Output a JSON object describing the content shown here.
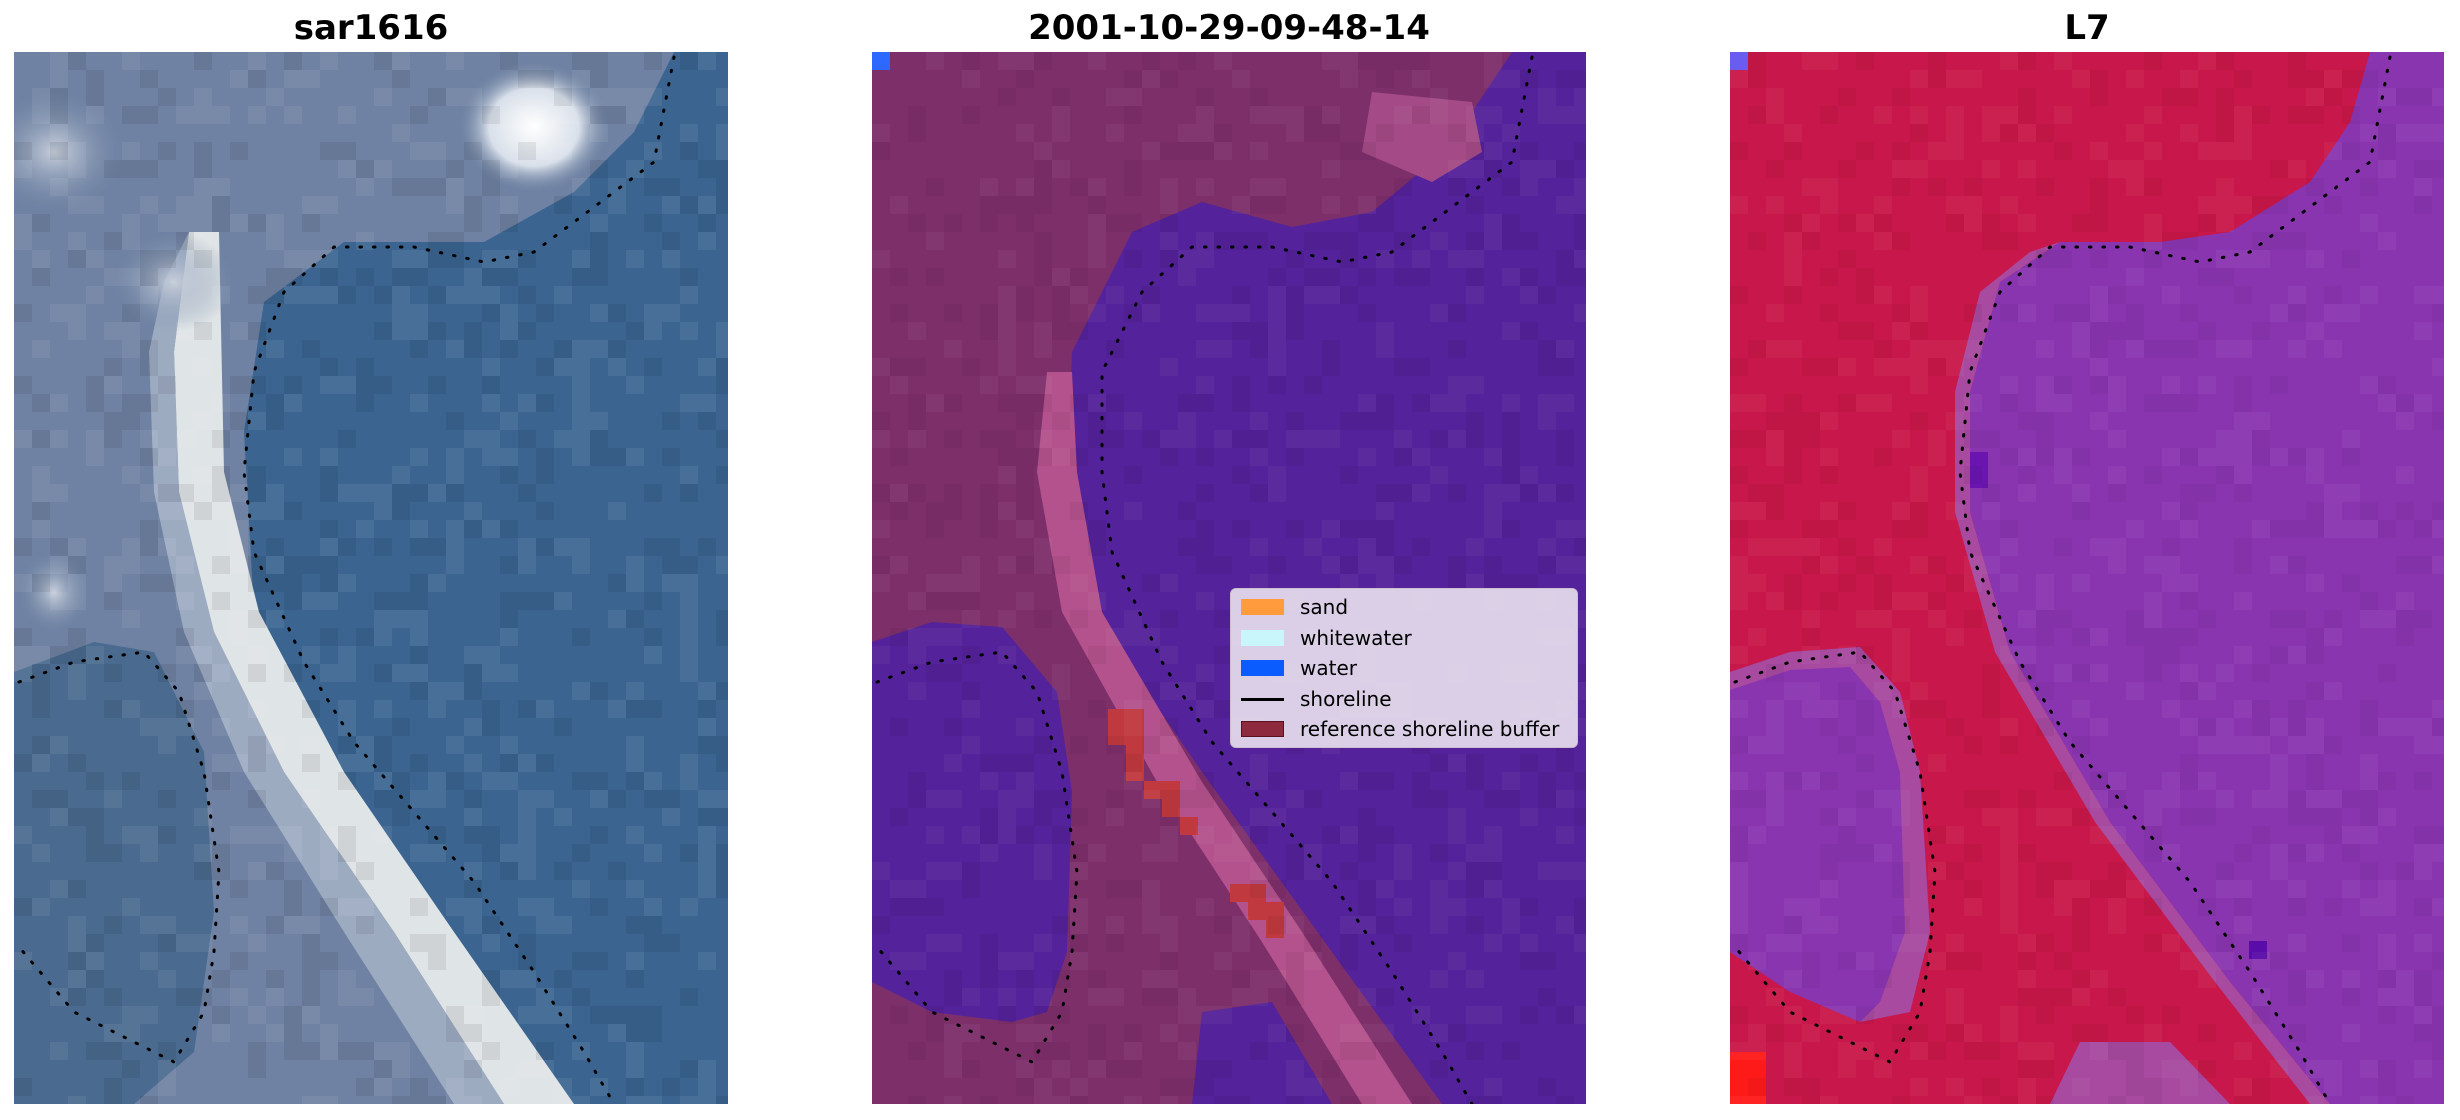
{
  "panels": [
    {
      "title": "sar1616"
    },
    {
      "title": "2001-10-29-09-48-14"
    },
    {
      "title": "L7"
    }
  ],
  "legend": {
    "items": [
      {
        "label": "sand",
        "color": "#ff9a3d",
        "kind": "patch"
      },
      {
        "label": "whitewater",
        "color": "#c8f6fb",
        "kind": "patch"
      },
      {
        "label": "water",
        "color": "#0a5cff",
        "kind": "patch"
      },
      {
        "label": "shoreline",
        "color": "#000000",
        "kind": "line"
      },
      {
        "label": "reference shoreline buffer",
        "color": "#8e2a3e",
        "kind": "patch"
      }
    ]
  },
  "colors": {
    "rgb_water": "#3b6590",
    "rgb_land": "#6f82a3",
    "rgb_sand": "#dfe4e6",
    "class_water": "#54229a",
    "class_land": "#7d2f6a",
    "class_sand": "#b3528c",
    "class_buffer": "#c0393f",
    "index_water": "#8a35b0",
    "index_land": "#c8174a",
    "index_sand": "#a74aa0"
  }
}
